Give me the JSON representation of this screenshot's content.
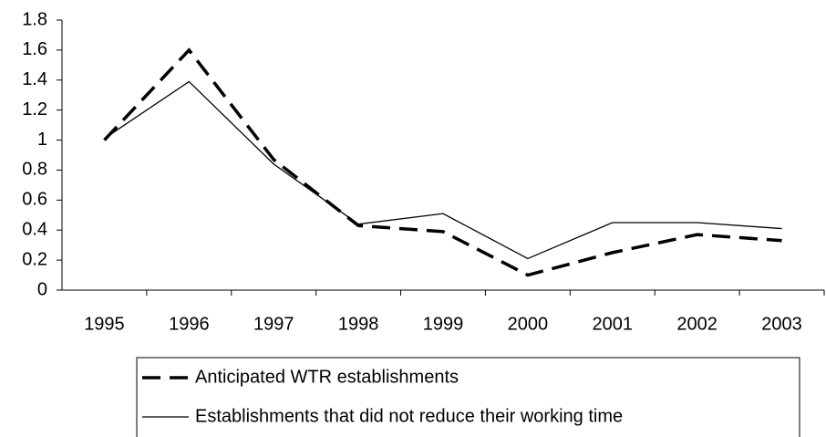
{
  "chart_data": {
    "type": "line",
    "categories": [
      "1995",
      "1996",
      "1997",
      "1998",
      "1999",
      "2000",
      "2001",
      "2002",
      "2003"
    ],
    "series": [
      {
        "name": "Anticipated WTR establishments",
        "color": "#000000",
        "dash": true,
        "values": [
          1.0,
          1.6,
          0.87,
          0.43,
          0.39,
          0.1,
          0.25,
          0.37,
          0.33
        ]
      },
      {
        "name": "Establishments that did not reduce their working time",
        "color": "#000000",
        "dash": false,
        "values": [
          1.01,
          1.39,
          0.84,
          0.44,
          0.51,
          0.21,
          0.45,
          0.45,
          0.41
        ]
      }
    ],
    "ylim": [
      0,
      1.8
    ],
    "yticks": [
      0,
      0.2,
      0.4,
      0.6,
      0.8,
      1,
      1.2,
      1.4,
      1.6,
      1.8
    ],
    "grid": false,
    "legend": "bottom"
  }
}
